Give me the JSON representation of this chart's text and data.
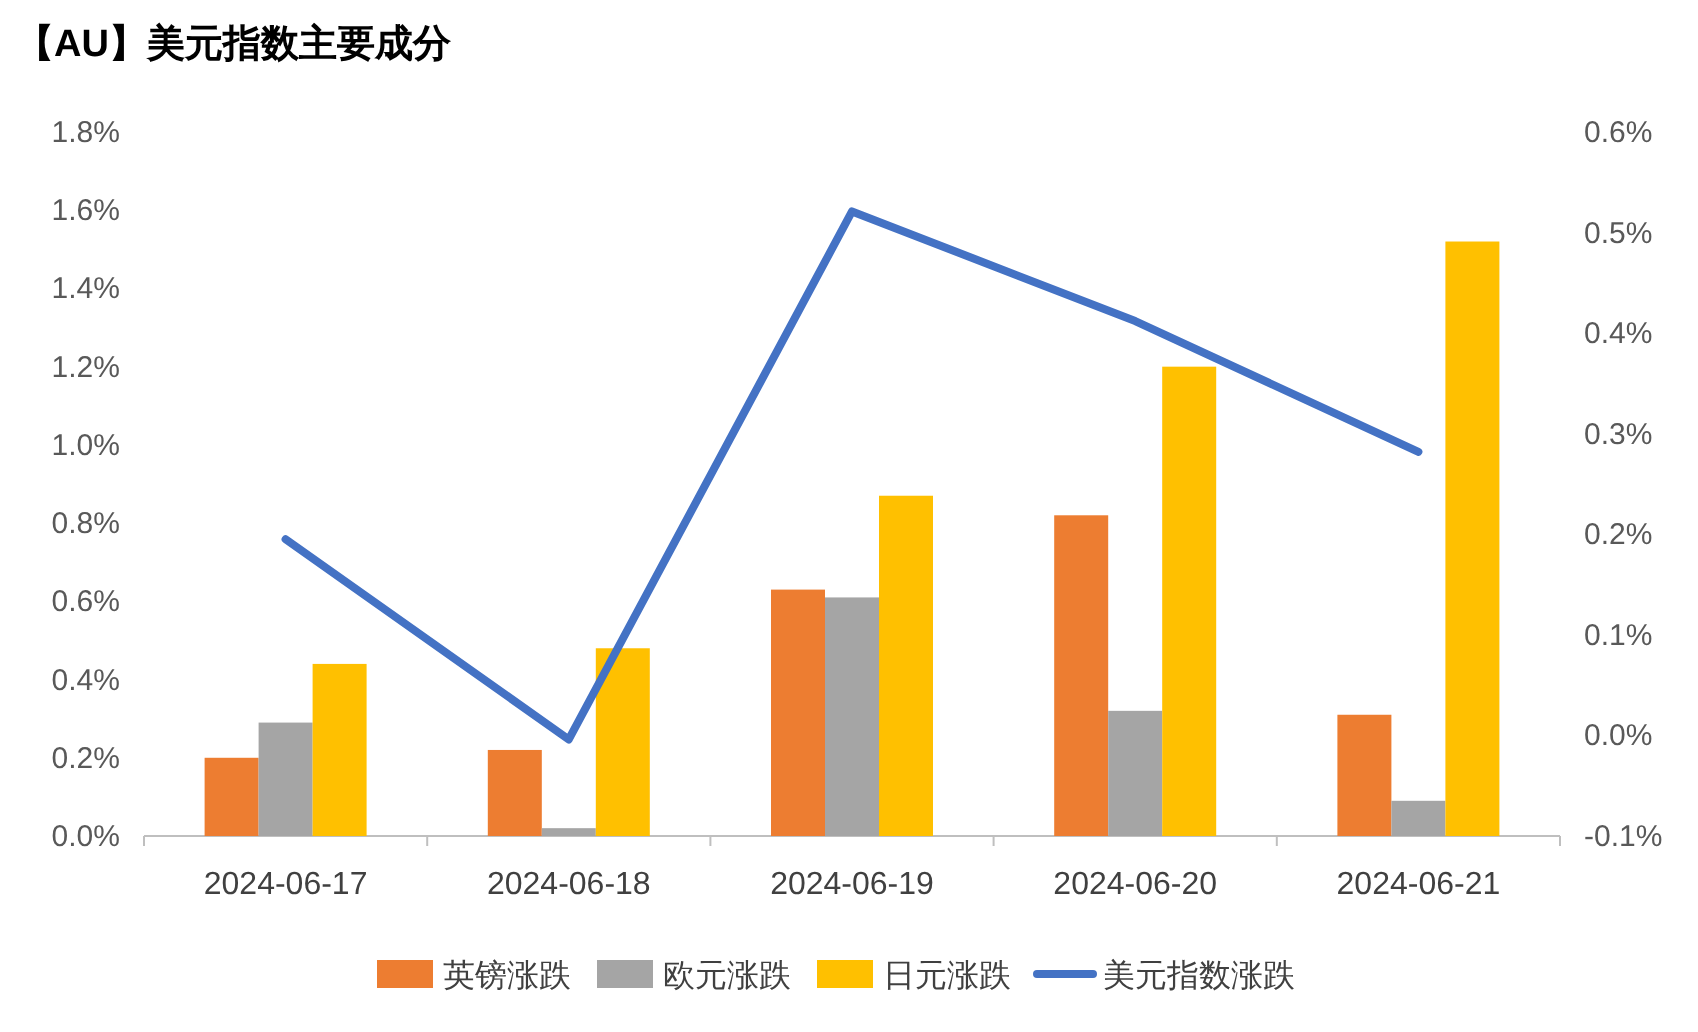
{
  "chart_data": {
    "type": "bar",
    "title": "【AU】美元指数主要成分",
    "categories": [
      "2024-06-17",
      "2024-06-18",
      "2024-06-19",
      "2024-06-20",
      "2024-06-21"
    ],
    "series": [
      {
        "name": "英镑涨跌",
        "color": "#ed7d31",
        "values": [
          0.2,
          0.22,
          0.63,
          0.82,
          0.31
        ]
      },
      {
        "name": "欧元涨跌",
        "color": "#a5a5a5",
        "values": [
          0.29,
          0.02,
          0.61,
          0.32,
          0.09
        ]
      },
      {
        "name": "日元涨跌",
        "color": "#ffc000",
        "values": [
          0.44,
          0.48,
          0.87,
          1.2,
          1.52
        ]
      },
      {
        "name": "美元指数涨跌",
        "color": "#4472c4",
        "type": "line",
        "axis": "y2",
        "values": [
          0.195,
          -0.004,
          0.521,
          0.412,
          0.282
        ]
      }
    ],
    "ylim": [
      0,
      1.8
    ],
    "yticks": [
      {
        "value": 0,
        "label": "0.0%"
      },
      {
        "value": 0.2,
        "label": "0.2%"
      },
      {
        "value": 0.4,
        "label": "0.4%"
      },
      {
        "value": 0.6,
        "label": "0.6%"
      },
      {
        "value": 0.8,
        "label": "0.8%"
      },
      {
        "value": 1.0,
        "label": "1.0%"
      },
      {
        "value": 1.2,
        "label": "1.2%"
      },
      {
        "value": 1.4,
        "label": "1.4%"
      },
      {
        "value": 1.6,
        "label": "1.6%"
      },
      {
        "value": 1.8,
        "label": "1.8%"
      }
    ],
    "y2lim": [
      -0.1,
      0.6
    ],
    "y2ticks": [
      {
        "value": -0.1,
        "label": "-0.1%"
      },
      {
        "value": 0,
        "label": "0.0%"
      },
      {
        "value": 0.1,
        "label": "0.1%"
      },
      {
        "value": 0.2,
        "label": "0.2%"
      },
      {
        "value": 0.3,
        "label": "0.3%"
      },
      {
        "value": 0.4,
        "label": "0.4%"
      },
      {
        "value": 0.5,
        "label": "0.5%"
      },
      {
        "value": 0.6,
        "label": "0.6%"
      }
    ],
    "grid": false,
    "legend": "bottom",
    "marker": "none",
    "line_style": "solid"
  }
}
